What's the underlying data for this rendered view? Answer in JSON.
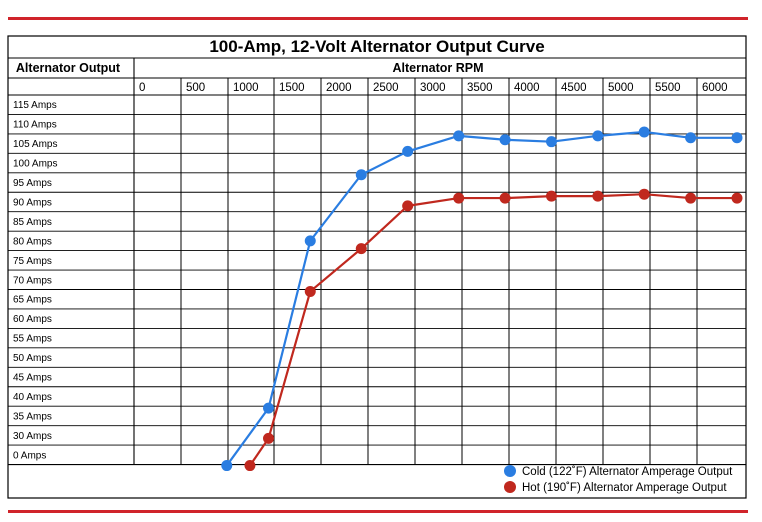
{
  "chart_data": {
    "type": "line",
    "title": "100-Amp, 12-Volt Alternator Output Curve",
    "ylabel": "Alternator Output",
    "xlabel": "Alternator RPM",
    "x_ticks": [
      "0",
      "500",
      "1000",
      "1500",
      "2000",
      "2500",
      "3000",
      "3500",
      "4000",
      "4500",
      "5000",
      "5500",
      "6000"
    ],
    "y_ticks": [
      "115 Amps",
      "110 Amps",
      "105 Amps",
      "100 Amps",
      "95 Amps",
      "90 Amps",
      "85 Amps",
      "80 Amps",
      "75 Amps",
      "70 Amps",
      "65 Amps",
      "60 Amps",
      "55 Amps",
      "50 Amps",
      "45 Amps",
      "40 Amps",
      "35 Amps",
      "30 Amps",
      "0 Amps"
    ],
    "xlim": [
      0,
      6500
    ],
    "grid": true,
    "legend_position": "bottom-right",
    "series": [
      {
        "name": "Cold (122˚F) Alternator Amperage Output",
        "color": "#2a7de1",
        "points": [
          [
            1000,
            0
          ],
          [
            1450,
            37
          ],
          [
            1900,
            80
          ],
          [
            2450,
            97
          ],
          [
            2950,
            103
          ],
          [
            3500,
            107
          ],
          [
            4000,
            106
          ],
          [
            4500,
            105.5
          ],
          [
            5000,
            107
          ],
          [
            5500,
            108
          ],
          [
            6000,
            106.5
          ],
          [
            6500,
            106.5
          ]
        ]
      },
      {
        "name": "Hot (190˚F) Alternator Amperage Output",
        "color": "#c0281e",
        "points": [
          [
            1250,
            0
          ],
          [
            1450,
            27
          ],
          [
            1900,
            67
          ],
          [
            2450,
            78
          ],
          [
            2950,
            89
          ],
          [
            3500,
            91
          ],
          [
            4000,
            91
          ],
          [
            4500,
            91.5
          ],
          [
            5000,
            91.5
          ],
          [
            5500,
            92
          ],
          [
            6000,
            91
          ],
          [
            6500,
            91
          ]
        ]
      }
    ]
  }
}
